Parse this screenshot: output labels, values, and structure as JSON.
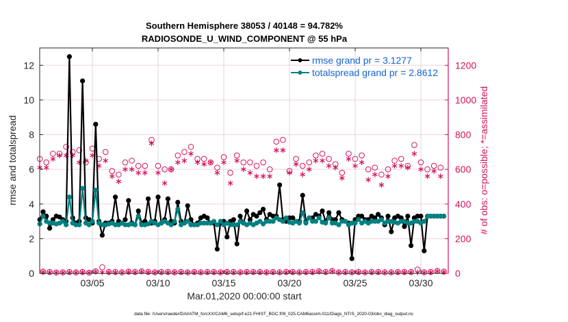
{
  "chart_data": {
    "type": "line",
    "title": "Southern Hemisphere 38053 / 40148 = 94.782%",
    "subtitle": "RADIOSONDE_U_WIND_COMPONENT @ 55 hPa",
    "xlabel": "Mar.01,2020 00:00:00 start",
    "ylabel": "rmse and totalspread",
    "y2label": "# of obs: o=possible; *=assimilated",
    "footnote": "data file: /Users/raeder/DAI/ATM_forcXX/CAM6_setup/f.e21.FHIST_BGC.f09_025.CAM6assim.011/Diags_NTrS_2020-03/obs_diag_output.nc",
    "x_tick_labels": [
      "03/05",
      "03/10",
      "03/15",
      "03/20",
      "03/25",
      "03/30"
    ],
    "x_tick_days": [
      5,
      10,
      15,
      20,
      25,
      30
    ],
    "xlim_days": [
      1,
      32.1
    ],
    "x_step_hours": 6,
    "ylim": [
      0,
      13
    ],
    "y_ticks": [
      0,
      2,
      4,
      6,
      8,
      10,
      12
    ],
    "y2lim": [
      0,
      1300
    ],
    "y2_ticks": [
      0,
      200,
      400,
      600,
      800,
      1000,
      1200
    ],
    "grid": true,
    "legend_position": "top-right",
    "colors": {
      "rmse": "#000000",
      "totalspread": "#008080",
      "obs": "#d40f5a",
      "legend_text": "#1464d2",
      "grid_h": "#f3d0de",
      "grid_v": "#d9d9d9"
    },
    "series": [
      {
        "name": "rmse grand pr = 3.1277",
        "key": "rmse",
        "values": [
          3.1,
          3.55,
          3.3,
          2.6,
          3.1,
          3.3,
          3.25,
          3.1,
          3.0,
          12.5,
          3.2,
          2.9,
          3.0,
          11.1,
          3.2,
          3.1,
          2.9,
          8.6,
          3.0,
          2.2,
          2.9,
          2.9,
          3.0,
          4.4,
          3.0,
          2.9,
          3.1,
          4.2,
          2.9,
          2.8,
          3.6,
          2.9,
          3.0,
          4.3,
          2.9,
          3.0,
          4.4,
          2.9,
          3.1,
          4.3,
          3.0,
          2.9,
          4.1,
          3.0,
          2.9,
          3.9,
          3.1,
          2.8,
          2.9,
          3.2,
          3.3,
          3.2,
          2.9,
          2.9,
          1.4,
          2.9,
          3.0,
          2.1,
          3.0,
          3.1,
          1.7,
          3.3,
          2.9,
          3.6,
          3.1,
          3.4,
          3.3,
          3.5,
          3.7,
          3.1,
          3.4,
          3.3,
          3.3,
          5.1,
          3.1,
          3.0,
          3.2,
          3.2,
          3.0,
          3.0,
          4.5,
          3.0,
          3.2,
          3.2,
          3.4,
          3.3,
          3.6,
          3.0,
          3.5,
          3.1,
          3.1,
          3.5,
          3.1,
          3.0,
          2.9,
          0.85,
          3.1,
          3.3,
          3.3,
          3.1,
          3.1,
          3.3,
          3.2,
          3.4,
          3.2,
          2.8,
          3.3,
          2.4,
          3.2,
          3.3,
          3.2,
          2.7,
          3.3,
          1.6,
          3.2,
          3.3,
          3.3,
          1.3,
          3.3,
          3.3,
          3.3,
          3.3,
          3.3,
          3.3
        ]
      },
      {
        "name": "totalspread grand pr = 2.8612",
        "key": "totalspread",
        "values": [
          2.85,
          3.3,
          3.0,
          2.9,
          2.9,
          2.85,
          2.9,
          3.0,
          2.8,
          4.4,
          2.9,
          2.8,
          2.8,
          4.9,
          2.9,
          2.8,
          3.0,
          4.8,
          2.9,
          2.8,
          2.8,
          2.85,
          2.9,
          2.8,
          2.8,
          2.9,
          2.8,
          2.8,
          2.85,
          2.8,
          3.3,
          2.8,
          2.8,
          2.85,
          3.0,
          2.9,
          2.8,
          2.9,
          3.0,
          2.9,
          2.8,
          3.0,
          3.7,
          2.8,
          2.9,
          3.0,
          2.8,
          2.8,
          2.8,
          2.9,
          2.9,
          2.9,
          2.9,
          3.0,
          2.8,
          3.0,
          2.8,
          2.9,
          2.8,
          2.8,
          2.8,
          3.0,
          2.9,
          2.8,
          2.9,
          2.8,
          2.9,
          3.0,
          2.85,
          3.0,
          3.0,
          3.0,
          3.2,
          3.1,
          3.0,
          3.2,
          2.95,
          2.9,
          3.0,
          2.9,
          3.5,
          2.9,
          3.2,
          3.0,
          3.0,
          3.2,
          2.95,
          2.9,
          3.2,
          2.9,
          2.9,
          2.8,
          3.0,
          3.0,
          2.8,
          2.9,
          2.9,
          3.1,
          2.9,
          3.0,
          2.9,
          3.0,
          3.0,
          3.0,
          3.1,
          2.9,
          3.0,
          3.0,
          2.95,
          2.9,
          3.0,
          3.0,
          2.9,
          2.9,
          3.0,
          3.0,
          2.9,
          3.0,
          3.3,
          3.3,
          3.3,
          3.3,
          3.3,
          3.3
        ]
      },
      {
        "name": "possible (00Z/12Z)",
        "key": "poss_main",
        "values": [
          660,
          640,
          690,
          690,
          730,
          700,
          710,
          640,
          720,
          660,
          700,
          590,
          570,
          640,
          650,
          620,
          620,
          770,
          620,
          600,
          600,
          680,
          700,
          730,
          660,
          660,
          640,
          610,
          670,
          580,
          680,
          640,
          640,
          620,
          640,
          600,
          760,
          770,
          590,
          660,
          620,
          640,
          680,
          690,
          660,
          630,
          580,
          690,
          660,
          680,
          600,
          610,
          570,
          600,
          650,
          660,
          620,
          740,
          640,
          600,
          620,
          610
        ]
      },
      {
        "name": "assimilated (00Z/12Z)",
        "key": "assim_main",
        "values": [
          610,
          610,
          660,
          680,
          680,
          680,
          640,
          650,
          680,
          620,
          650,
          560,
          530,
          600,
          600,
          580,
          580,
          750,
          580,
          520,
          600,
          640,
          650,
          690,
          640,
          630,
          640,
          580,
          640,
          520,
          650,
          600,
          580,
          560,
          560,
          560,
          710,
          710,
          580,
          630,
          570,
          600,
          650,
          650,
          620,
          610,
          550,
          660,
          620,
          640,
          540,
          570,
          510,
          560,
          620,
          620,
          610,
          690,
          600,
          560,
          590,
          560
        ]
      },
      {
        "name": "possible (06Z/18Z)",
        "key": "poss_off",
        "values": [
          10,
          8,
          5,
          6,
          8,
          6,
          8,
          4,
          12,
          35,
          8,
          8,
          6,
          10,
          8,
          12,
          8,
          6,
          8,
          8,
          6,
          8,
          6,
          8,
          6,
          8,
          8,
          6,
          8,
          8,
          6,
          8,
          8,
          8,
          6,
          8,
          6,
          8,
          8,
          6,
          8,
          8,
          12,
          8,
          14,
          6,
          8,
          6,
          8,
          6,
          8,
          8,
          6,
          6,
          8,
          8,
          8,
          22,
          6,
          8,
          14,
          10
        ]
      },
      {
        "name": "assimilated (06Z/18Z)",
        "key": "assim_off",
        "values": [
          8,
          6,
          5,
          5,
          6,
          5,
          6,
          4,
          10,
          6,
          6,
          6,
          5,
          8,
          6,
          10,
          6,
          5,
          6,
          6,
          5,
          6,
          5,
          6,
          5,
          6,
          6,
          5,
          6,
          6,
          5,
          6,
          6,
          6,
          5,
          6,
          5,
          6,
          6,
          5,
          6,
          6,
          10,
          6,
          12,
          5,
          6,
          5,
          6,
          5,
          6,
          6,
          5,
          5,
          6,
          6,
          6,
          6,
          5,
          6,
          12,
          8
        ]
      }
    ]
  }
}
